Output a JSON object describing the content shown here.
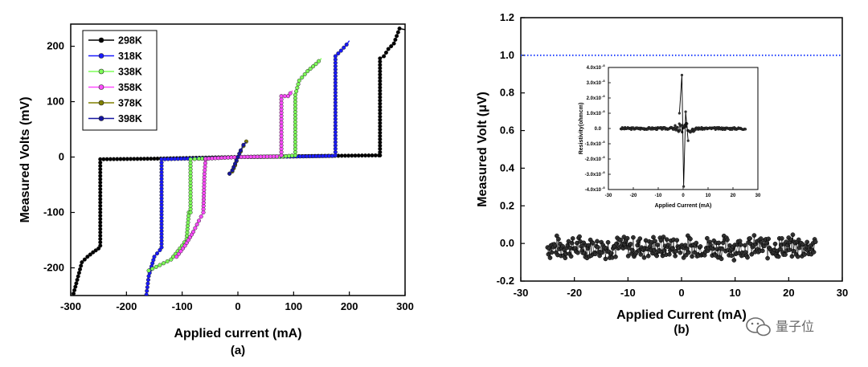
{
  "chart_data": [
    {
      "type": "line",
      "caption": "(a)",
      "xlabel": "Applied current (mA)",
      "ylabel": "Measured Volts (mV)",
      "xlim": [
        -300,
        300
      ],
      "ylim": [
        -250,
        240
      ],
      "xticks": [
        "-300",
        "-200",
        "-100",
        "0",
        "100",
        "200",
        "300"
      ],
      "yticks": [
        "-200",
        "-100",
        "0",
        "100",
        "200"
      ],
      "legend_position": "top-left",
      "series": [
        {
          "name": "298K",
          "color": "#000000",
          "points": [
            [
              -300,
              -265
            ],
            [
              -290,
              -228
            ],
            [
              -280,
              -190
            ],
            [
              -270,
              -180
            ],
            [
              -260,
              -172
            ],
            [
              -250,
              -165
            ],
            [
              -247,
              -160
            ],
            [
              -247,
              -4
            ],
            [
              -150,
              -3
            ],
            [
              0,
              0
            ],
            [
              150,
              2
            ],
            [
              253,
              3
            ],
            [
              255,
              3
            ],
            [
              255,
              178
            ],
            [
              262,
              182
            ],
            [
              270,
              195
            ],
            [
              280,
              205
            ],
            [
              290,
              232
            ],
            [
              300,
              230
            ]
          ]
        },
        {
          "name": "318K",
          "color": "#1a1aff",
          "points": [
            [
              -165,
              -255
            ],
            [
              -160,
              -215
            ],
            [
              -150,
              -180
            ],
            [
              -140,
              -168
            ],
            [
              -137,
              -163
            ],
            [
              -137,
              -4
            ],
            [
              -60,
              -2
            ],
            [
              0,
              0
            ],
            [
              100,
              1
            ],
            [
              170,
              2
            ],
            [
              175,
              3
            ],
            [
              175,
              182
            ],
            [
              185,
              192
            ],
            [
              195,
              203
            ],
            [
              200,
              210
            ]
          ]
        },
        {
          "name": "338K",
          "color": "#7fff5a",
          "points": [
            [
              -160,
              -205
            ],
            [
              -140,
              -195
            ],
            [
              -120,
              -185
            ],
            [
              -100,
              -160
            ],
            [
              -92,
              -148
            ],
            [
              -88,
              -100
            ],
            [
              -85,
              -100
            ],
            [
              -85,
              -4
            ],
            [
              -70,
              -3
            ],
            [
              0,
              0
            ],
            [
              80,
              1
            ],
            [
              103,
              3
            ],
            [
              103,
              112
            ],
            [
              110,
              138
            ],
            [
              125,
              155
            ],
            [
              140,
              168
            ],
            [
              150,
              178
            ]
          ]
        },
        {
          "name": "358K",
          "color": "#ff4dff",
          "points": [
            [
              -110,
              -180
            ],
            [
              -95,
              -160
            ],
            [
              -80,
              -135
            ],
            [
              -70,
              -115
            ],
            [
              -62,
              -100
            ],
            [
              -60,
              -30
            ],
            [
              -58,
              -5
            ],
            [
              -58,
              -3
            ],
            [
              0,
              0
            ],
            [
              70,
              1
            ],
            [
              78,
              3
            ],
            [
              78,
              110
            ],
            [
              90,
              110
            ],
            [
              98,
              120
            ]
          ]
        },
        {
          "name": "378K",
          "color": "#808000",
          "points": [
            [
              -15,
              -30
            ],
            [
              -10,
              -26
            ],
            [
              -5,
              -15
            ],
            [
              0,
              0
            ],
            [
              5,
              10
            ],
            [
              10,
              20
            ],
            [
              15,
              28
            ],
            [
              18,
              30
            ]
          ]
        },
        {
          "name": "398K",
          "color": "#1515a0",
          "points": [
            [
              -15,
              -30
            ],
            [
              -10,
              -24
            ],
            [
              -5,
              -12
            ],
            [
              0,
              0
            ],
            [
              5,
              12
            ],
            [
              10,
              22
            ],
            [
              15,
              27
            ]
          ]
        }
      ]
    },
    {
      "type": "scatter",
      "caption": "(b)",
      "xlabel": "Applied Current (mA)",
      "ylabel": "Measured Volt (μV)",
      "xlim": [
        -30,
        30
      ],
      "ylim": [
        -0.2,
        1.2
      ],
      "xticks": [
        "-30",
        "-20",
        "-10",
        "0",
        "10",
        "20",
        "30"
      ],
      "yticks": [
        "-0.2",
        "0.0",
        "0.2",
        "0.4",
        "0.6",
        "0.8",
        "1.0",
        "1.2"
      ],
      "reference_line": {
        "y": 1.0,
        "color": "#1f3fff",
        "style": "dotted"
      },
      "series": [
        {
          "color": "#000000",
          "x_range": [
            -25,
            25
          ],
          "y_center": -0.02,
          "y_spread": 0.07
        }
      ],
      "inset": {
        "type": "line",
        "xlabel": "Applied Current (mA)",
        "ylabel": "Resistivity(ohmcm)",
        "xlim": [
          -30,
          30
        ],
        "ylim": [
          -4.0,
          4.0
        ],
        "xticks": [
          "-30",
          "-20",
          "-10",
          "0",
          "10",
          "20",
          "30"
        ],
        "yticks": [
          "-4.0x10",
          "-3.0x10",
          "-2.0x10",
          "-1.0x10",
          "0.0",
          "1.0x10",
          "2.0x10",
          "3.0x10",
          "4.0x10"
        ],
        "ytick_exponent": "-8",
        "peak_points": [
          [
            -1.5,
            1.0
          ],
          [
            -0.5,
            3.5
          ],
          [
            0.2,
            -3.8
          ],
          [
            1.0,
            1.1
          ],
          [
            2,
            -0.8
          ]
        ]
      }
    }
  ],
  "watermark": {
    "text": "量子位",
    "icon": "wechat-icon"
  }
}
